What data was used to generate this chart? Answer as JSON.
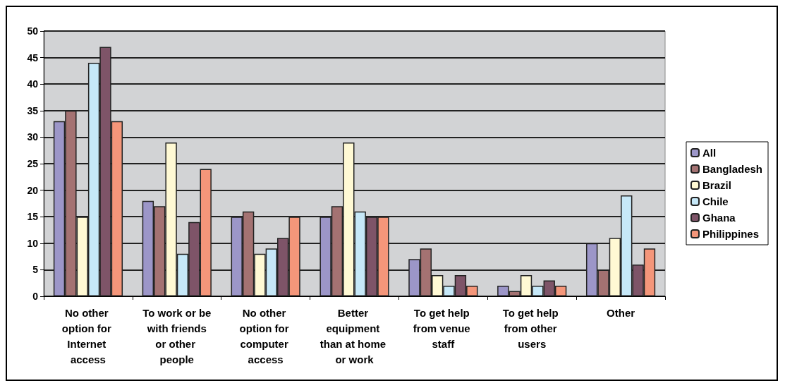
{
  "chart_data": {
    "type": "bar",
    "categories": [
      "No other option for Internet access",
      "To work or be with friends or other people",
      "No other option for computer access",
      "Better equipment than at home or work",
      "To get help from venue staff",
      "To get help from other users",
      "Other"
    ],
    "series": [
      {
        "name": "All",
        "color": "#9c96c8",
        "values": [
          33,
          18,
          15,
          15,
          7,
          2,
          10
        ]
      },
      {
        "name": "Bangladesh",
        "color": "#a47272",
        "values": [
          35,
          17,
          16,
          17,
          9,
          1,
          5
        ]
      },
      {
        "name": "Brazil",
        "color": "#fff9d4",
        "values": [
          15,
          29,
          8,
          29,
          4,
          4,
          11
        ]
      },
      {
        "name": "Chile",
        "color": "#c6e8f8",
        "values": [
          44,
          8,
          9,
          16,
          2,
          2,
          19
        ]
      },
      {
        "name": "Ghana",
        "color": "#7e5468",
        "values": [
          47,
          14,
          11,
          15,
          4,
          3,
          6
        ]
      },
      {
        "name": "Philippines",
        "color": "#f4967a",
        "values": [
          33,
          24,
          15,
          15,
          2,
          2,
          9
        ]
      }
    ],
    "ylim": [
      0,
      50
    ],
    "yticks": [
      0,
      5,
      10,
      15,
      20,
      25,
      30,
      35,
      40,
      45,
      50
    ],
    "grid": "y",
    "legend": "right"
  }
}
